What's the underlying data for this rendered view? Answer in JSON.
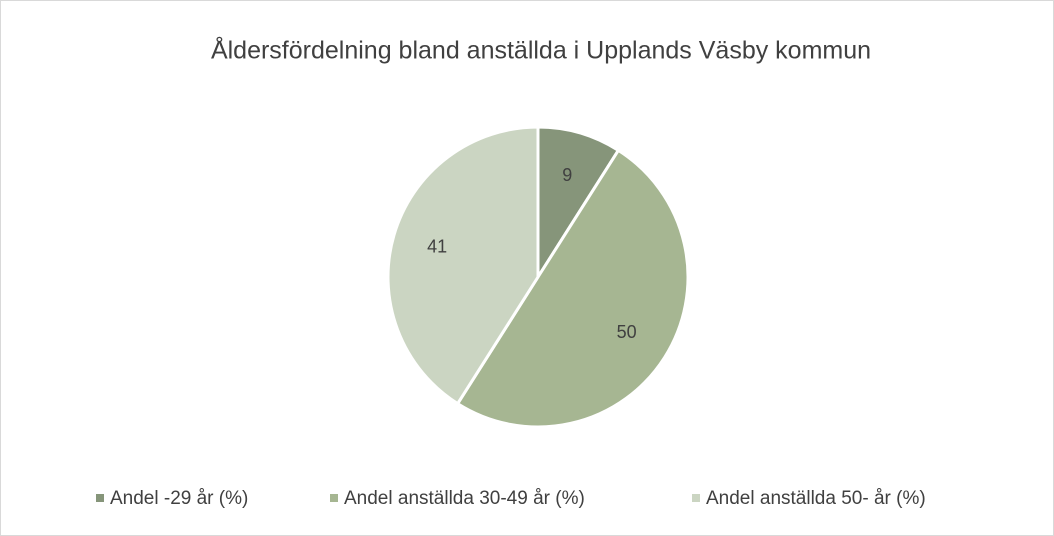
{
  "chart_data": {
    "type": "pie",
    "title": "Åldersfördelning bland anställda i Upplands Väsby kommun",
    "categories": [
      "Andel -29 år (%)",
      "Andel anställda 30-49 år (%)",
      "Andel anställda 50- år (%)"
    ],
    "values": [
      9,
      50,
      41
    ],
    "colors": [
      "#86957a",
      "#a6b692",
      "#cbd5c2"
    ],
    "legend": "bottom"
  }
}
